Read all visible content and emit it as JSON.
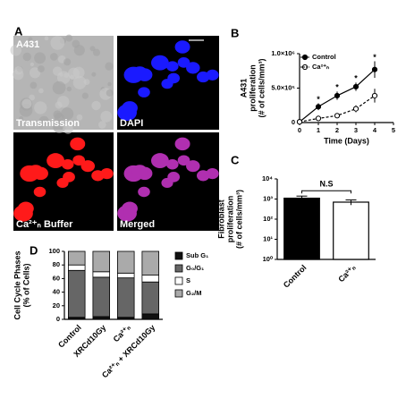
{
  "figure": {
    "panels": [
      "A",
      "B",
      "C",
      "D"
    ],
    "images": [
      "A431",
      "Transmission",
      "DAPI",
      "Ca²⁺ₙ Buffer",
      "Merged"
    ]
  },
  "chart_data": [
    {
      "type": "line",
      "xlabel": "Time (Days)",
      "ylabel": [
        "A431",
        "proliferation",
        "(# of cells/mm³)"
      ],
      "x": [
        0,
        1,
        2,
        3,
        4
      ],
      "xlim": [
        0,
        5
      ],
      "xticks": [
        0,
        1,
        2,
        3,
        4,
        5
      ],
      "ylim": [
        0,
        1000000
      ],
      "yticks": [
        0,
        {
          "value": 500000,
          "label": "5.0×10⁵"
        },
        {
          "value": 1000000,
          "label": "1.0×10⁶"
        }
      ],
      "series": [
        {
          "name": "Control",
          "color": "#000000",
          "marker_fill": "#000000",
          "linestyle": "solid",
          "values": [
            10000,
            230000,
            390000,
            520000,
            770000
          ],
          "errors": [
            0,
            50000,
            60000,
            60000,
            120000
          ]
        },
        {
          "name": "Ca²⁺ₙ",
          "color": "#000000",
          "marker_fill": "#ffffff",
          "linestyle": "dashed",
          "values": [
            10000,
            60000,
            100000,
            200000,
            390000
          ],
          "errors": [
            0,
            20000,
            20000,
            50000,
            100000
          ]
        }
      ],
      "annotations": [
        {
          "text": "*",
          "x": 1
        },
        {
          "text": "*",
          "x": 2
        },
        {
          "text": "*",
          "x": 3
        },
        {
          "text": "*",
          "x": 4
        }
      ],
      "legend": "upper left"
    },
    {
      "type": "bar",
      "log_scale": true,
      "ylabel": [
        "Fibroblast",
        "proliferation",
        "(# of cells/mm³)"
      ],
      "categories": [
        "Control",
        "Ca²⁺ₙ"
      ],
      "values": [
        1100,
        700
      ],
      "errors": [
        300,
        200
      ],
      "colors": [
        "#000000",
        "#ffffff"
      ],
      "ylim": [
        1,
        10000
      ],
      "yticks": [
        {
          "value": 1,
          "label": "10⁰"
        },
        {
          "value": 10,
          "label": "10¹"
        },
        {
          "value": 100,
          "label": "10²"
        },
        {
          "value": 1000,
          "label": "10³"
        },
        {
          "value": 10000,
          "label": "10⁴"
        }
      ],
      "annotation": "N.S"
    },
    {
      "type": "stacked_bar",
      "ylabel": [
        "Cell Cycle Phases",
        "(% of Cells)"
      ],
      "categories": [
        "Control",
        "XRCd10Gy",
        "Ca²⁺ₙ",
        "Ca²⁺ₙ + XRCd10Gy"
      ],
      "ylim": [
        0,
        100
      ],
      "yticks": [
        0,
        20,
        40,
        60,
        80,
        100
      ],
      "series": [
        {
          "name": "Sub G₁",
          "color": "#111111",
          "values": [
            3,
            4,
            3,
            8
          ]
        },
        {
          "name": "G₀/G₁",
          "color": "#666666",
          "values": [
            69,
            58,
            58,
            47
          ]
        },
        {
          "name": "S",
          "color": "#ffffff",
          "values": [
            8,
            8,
            7,
            10
          ]
        },
        {
          "name": "G₂/M",
          "color": "#aaaaaa",
          "values": [
            20,
            30,
            32,
            35
          ]
        }
      ],
      "legend": "right"
    }
  ]
}
